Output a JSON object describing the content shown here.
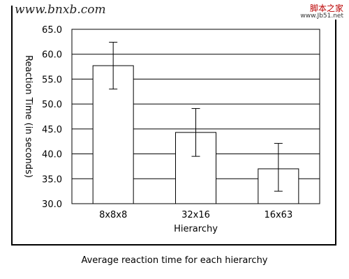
{
  "watermark": {
    "left": "www.bnxb.com",
    "right_top": "脚本之家",
    "right_bottom": "www.Jb51.net"
  },
  "caption": "Average reaction time for each hierarchy",
  "chart_data": {
    "type": "bar",
    "title": "",
    "xlabel": "Hierarchy",
    "ylabel": "Reaction Time (in seconds)",
    "categories": [
      "8x8x8",
      "32x16",
      "16x63"
    ],
    "values": [
      57.7,
      44.3,
      37.0
    ],
    "error_high": [
      62.4,
      49.1,
      42.1
    ],
    "error_low": [
      53.0,
      39.5,
      32.5
    ],
    "ylim": [
      30.0,
      65.0
    ],
    "yticks": [
      "30.0",
      "35.0",
      "40.0",
      "45.0",
      "50.0",
      "55.0",
      "60.0",
      "65.0"
    ],
    "grid": true,
    "legend": "none",
    "colors": {
      "bar_fill": "#ffffff",
      "bar_stroke": "#000000",
      "grid": "#000000"
    }
  }
}
